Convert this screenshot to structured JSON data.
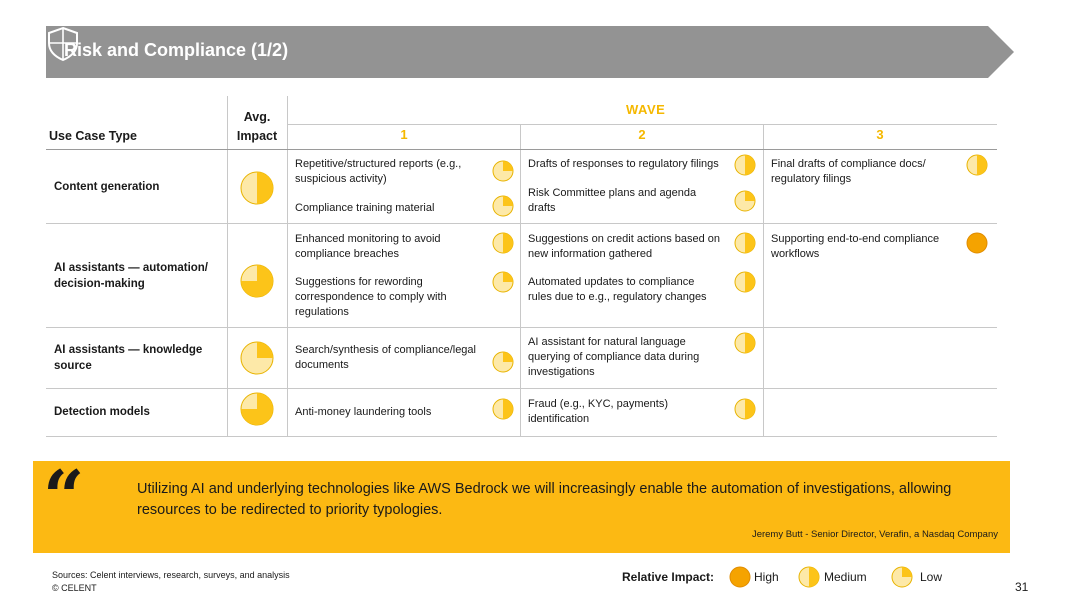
{
  "header": {
    "title": "Risk and Compliance (1/2)",
    "icon": "shield-icon"
  },
  "table": {
    "col_use_case": "Use Case Type",
    "col_avg_impact_line1": "Avg.",
    "col_avg_impact_line2": "Impact",
    "wave_label": "WAVE",
    "waves": [
      "1",
      "2",
      "3"
    ],
    "rows": [
      {
        "label_line1": "Content generation",
        "label_line2": "",
        "avg_impact": "medium",
        "wave1": [
          {
            "text_l1": "Repetitive/structured reports (e.g.,",
            "text_l2": "suspicious activity)",
            "text_l3": "",
            "impact": "low"
          },
          {
            "text_l1": "Compliance training material",
            "text_l2": "",
            "text_l3": "",
            "impact": "low"
          }
        ],
        "wave2": [
          {
            "text_l1": "Drafts of responses to regulatory filings",
            "text_l2": "",
            "text_l3": "",
            "impact": "medium"
          },
          {
            "text_l1": "Risk Committee plans and agenda",
            "text_l2": "drafts",
            "text_l3": "",
            "impact": "low"
          }
        ],
        "wave3": [
          {
            "text_l1": "Final drafts of compliance docs/",
            "text_l2": "regulatory filings",
            "text_l3": "",
            "impact": "medium"
          }
        ]
      },
      {
        "label_line1": "AI assistants — automation/",
        "label_line2": "decision-making",
        "avg_impact": "medium-high",
        "wave1": [
          {
            "text_l1": "Enhanced monitoring to avoid",
            "text_l2": "compliance breaches",
            "text_l3": "",
            "impact": "medium"
          },
          {
            "text_l1": "Suggestions for rewording",
            "text_l2": "correspondence to comply with",
            "text_l3": "regulations",
            "impact": "low"
          }
        ],
        "wave2": [
          {
            "text_l1": "Suggestions on credit actions based on",
            "text_l2": "new information gathered",
            "text_l3": "",
            "impact": "medium"
          },
          {
            "text_l1": "Automated updates to compliance",
            "text_l2": "rules due to e.g., regulatory changes",
            "text_l3": "",
            "impact": "medium"
          }
        ],
        "wave3": [
          {
            "text_l1": "Supporting end-to-end compliance",
            "text_l2": "workflows",
            "text_l3": "",
            "impact": "high"
          }
        ]
      },
      {
        "label_line1": "AI assistants — knowledge",
        "label_line2": "source",
        "avg_impact": "low",
        "wave1": [
          {
            "text_l1": "Search/synthesis of compliance/legal",
            "text_l2": "documents",
            "text_l3": "",
            "impact": "low"
          }
        ],
        "wave2": [
          {
            "text_l1": "AI assistant for natural language",
            "text_l2": "querying of compliance data during",
            "text_l3": "investigations",
            "impact": "medium"
          }
        ],
        "wave3": []
      },
      {
        "label_line1": "Detection models",
        "label_line2": "",
        "avg_impact": "medium-high",
        "wave1": [
          {
            "text_l1": "Anti-money laundering tools",
            "text_l2": "",
            "text_l3": "",
            "impact": "medium"
          }
        ],
        "wave2": [
          {
            "text_l1": "Fraud (e.g., KYC, payments)",
            "text_l2": "identification",
            "text_l3": "",
            "impact": "medium"
          }
        ],
        "wave3": []
      }
    ]
  },
  "quote": {
    "mark": "“",
    "text": "Utilizing AI and underlying technologies like AWS Bedrock we will increasingly enable the automation of investigations, allowing resources to be redirected to priority typologies.",
    "author": "Jeremy Butt -  Senior Director, Verafin, a Nasdaq Company"
  },
  "footer": {
    "sources": "Sources: Celent interviews, research, surveys, and analysis",
    "copyright": "© CELENT",
    "legend_title": "Relative Impact:",
    "legend": [
      {
        "label": "High",
        "impact": "high"
      },
      {
        "label": "Medium",
        "impact": "medium"
      },
      {
        "label": "Low",
        "impact": "low"
      }
    ],
    "page_number": "31"
  },
  "colors": {
    "accent": "#f5b800",
    "quote_bg": "#fcb913",
    "banner": "#939393",
    "high": "#f5a300",
    "medium": "#fcc419",
    "low_fill": "#fde9a8"
  }
}
